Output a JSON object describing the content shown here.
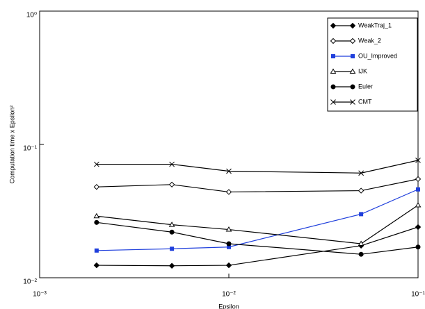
{
  "chart_data": {
    "type": "line",
    "xlabel": "Epsilon",
    "ylabel": "Computation time x Epsilon²",
    "xscale": "log",
    "yscale": "log",
    "xlim": [
      0.001,
      0.1
    ],
    "ylim": [
      0.01,
      1
    ],
    "xticks": [
      {
        "value": 0.001,
        "label": "10⁻³"
      },
      {
        "value": 0.01,
        "label": "10⁻²"
      },
      {
        "value": 0.1,
        "label": "10⁻¹"
      }
    ],
    "yticks": [
      {
        "value": 0.01,
        "label": "10⁻²"
      },
      {
        "value": 0.1,
        "label": "10⁻¹"
      },
      {
        "value": 1,
        "label": "10⁰"
      }
    ],
    "legend": "upper right",
    "x": [
      0.002,
      0.005,
      0.01,
      0.05,
      0.1
    ],
    "series": [
      {
        "name": "WeakTraj_1",
        "color": "#000000",
        "marker": "filled-diamond",
        "values": [
          0.0124,
          0.0123,
          0.0124,
          0.0174,
          0.024
        ]
      },
      {
        "name": "Weak_2",
        "color": "#000000",
        "marker": "open-diamond",
        "values": [
          0.048,
          0.05,
          0.044,
          0.045,
          0.055
        ]
      },
      {
        "name": "OU_Improved",
        "color": "#1f3fdc",
        "marker": "filled-square",
        "values": [
          0.016,
          0.0165,
          0.017,
          0.03,
          0.046
        ]
      },
      {
        "name": "IJK",
        "color": "#000000",
        "marker": "open-triangle",
        "values": [
          0.029,
          0.025,
          0.023,
          0.018,
          0.035
        ]
      },
      {
        "name": "Euler",
        "color": "#000000",
        "marker": "filled-circle",
        "values": [
          0.026,
          0.022,
          0.018,
          0.015,
          0.017
        ]
      },
      {
        "name": "CMT",
        "color": "#000000",
        "marker": "cross",
        "values": [
          0.071,
          0.071,
          0.063,
          0.061,
          0.076
        ]
      }
    ]
  }
}
